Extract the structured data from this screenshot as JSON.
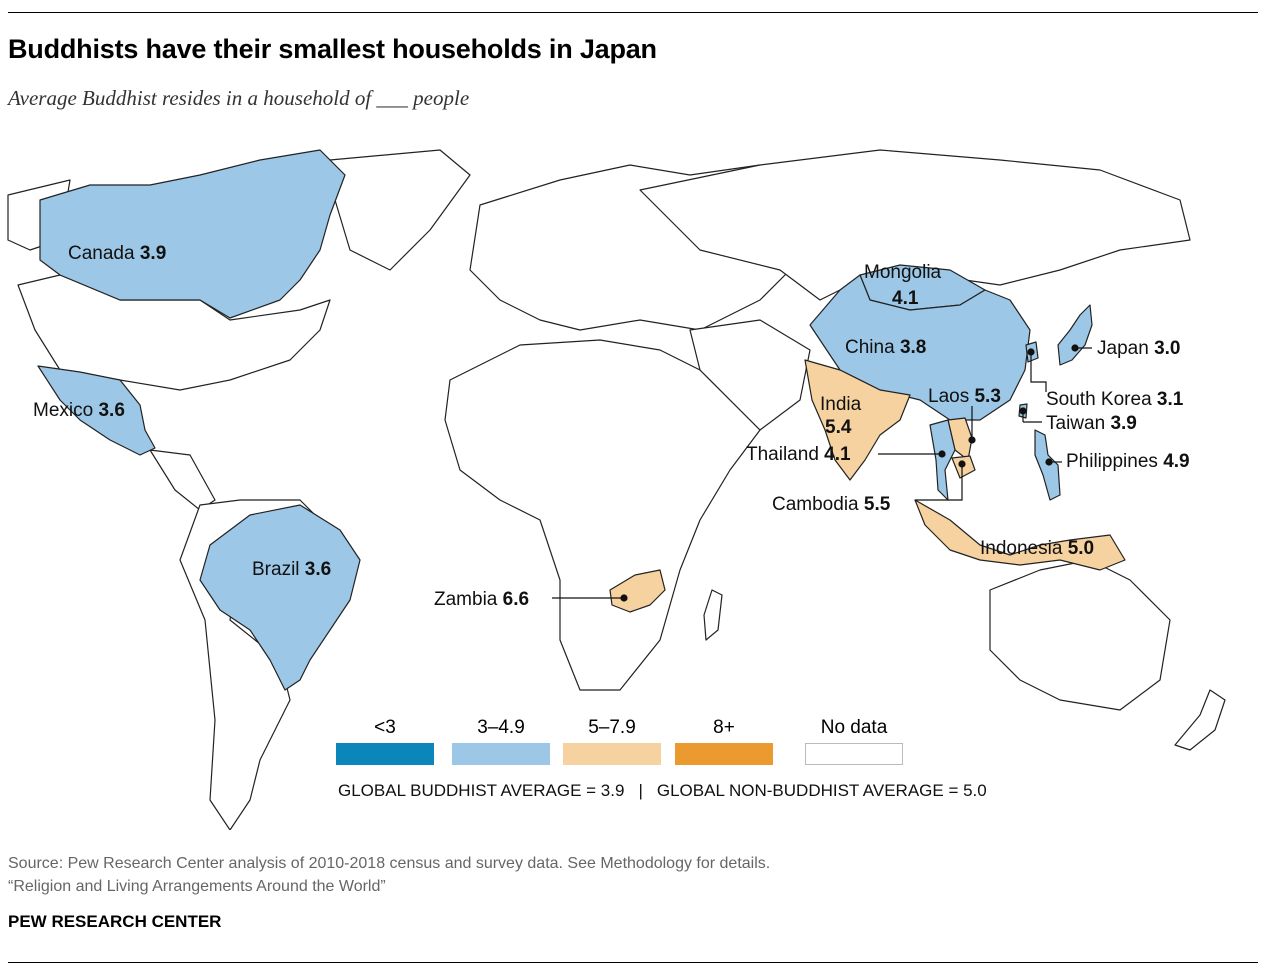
{
  "header": {
    "title": "Buddhists have their smallest households in Japan",
    "subtitle": "Average Buddhist resides in a household of ___ people"
  },
  "colors": {
    "lt3": "#0a86ba",
    "c3to49": "#9cc7e6",
    "c5to79": "#f6d2a0",
    "c8plus": "#ea9a2e",
    "nodata": "#ffffff",
    "border": "#222222"
  },
  "countries": [
    {
      "name": "Canada",
      "value": "3.9",
      "category": "3-4.9"
    },
    {
      "name": "Mexico",
      "value": "3.6",
      "category": "3-4.9"
    },
    {
      "name": "Brazil",
      "value": "3.6",
      "category": "3-4.9"
    },
    {
      "name": "Zambia",
      "value": "6.6",
      "category": "5-7.9"
    },
    {
      "name": "Mongolia",
      "value": "4.1",
      "category": "3-4.9"
    },
    {
      "name": "China",
      "value": "3.8",
      "category": "3-4.9"
    },
    {
      "name": "India",
      "value": "5.4",
      "category": "5-7.9"
    },
    {
      "name": "Laos",
      "value": "5.3",
      "category": "5-7.9"
    },
    {
      "name": "Thailand",
      "value": "4.1",
      "category": "3-4.9"
    },
    {
      "name": "Cambodia",
      "value": "5.5",
      "category": "5-7.9"
    },
    {
      "name": "Indonesia",
      "value": "5.0",
      "category": "5-7.9"
    },
    {
      "name": "Japan",
      "value": "3.0",
      "category": "3-4.9"
    },
    {
      "name": "South Korea",
      "value": "3.1",
      "category": "3-4.9"
    },
    {
      "name": "Taiwan",
      "value": "3.9",
      "category": "3-4.9"
    },
    {
      "name": "Philippines",
      "value": "4.9",
      "category": "3-4.9"
    }
  ],
  "legend": [
    {
      "label": "<3",
      "color": "#0a86ba"
    },
    {
      "label": "3–4.9",
      "color": "#9cc7e6"
    },
    {
      "label": "5–7.9",
      "color": "#f6d2a0"
    },
    {
      "label": "8+",
      "color": "#ea9a2e"
    },
    {
      "label": "No data",
      "color": "#ffffff"
    }
  ],
  "averages": {
    "buddhist": "GLOBAL BUDDHIST AVERAGE = 3.9",
    "separator": "|",
    "non_buddhist": "GLOBAL NON-BUDDHIST AVERAGE = 5.0"
  },
  "footer": {
    "source": "Source: Pew Research Center analysis of 2010-2018 census and survey data. See Methodology for details.",
    "report": "“Religion and Living Arrangements Around the World”",
    "org": "PEW RESEARCH CENTER"
  }
}
